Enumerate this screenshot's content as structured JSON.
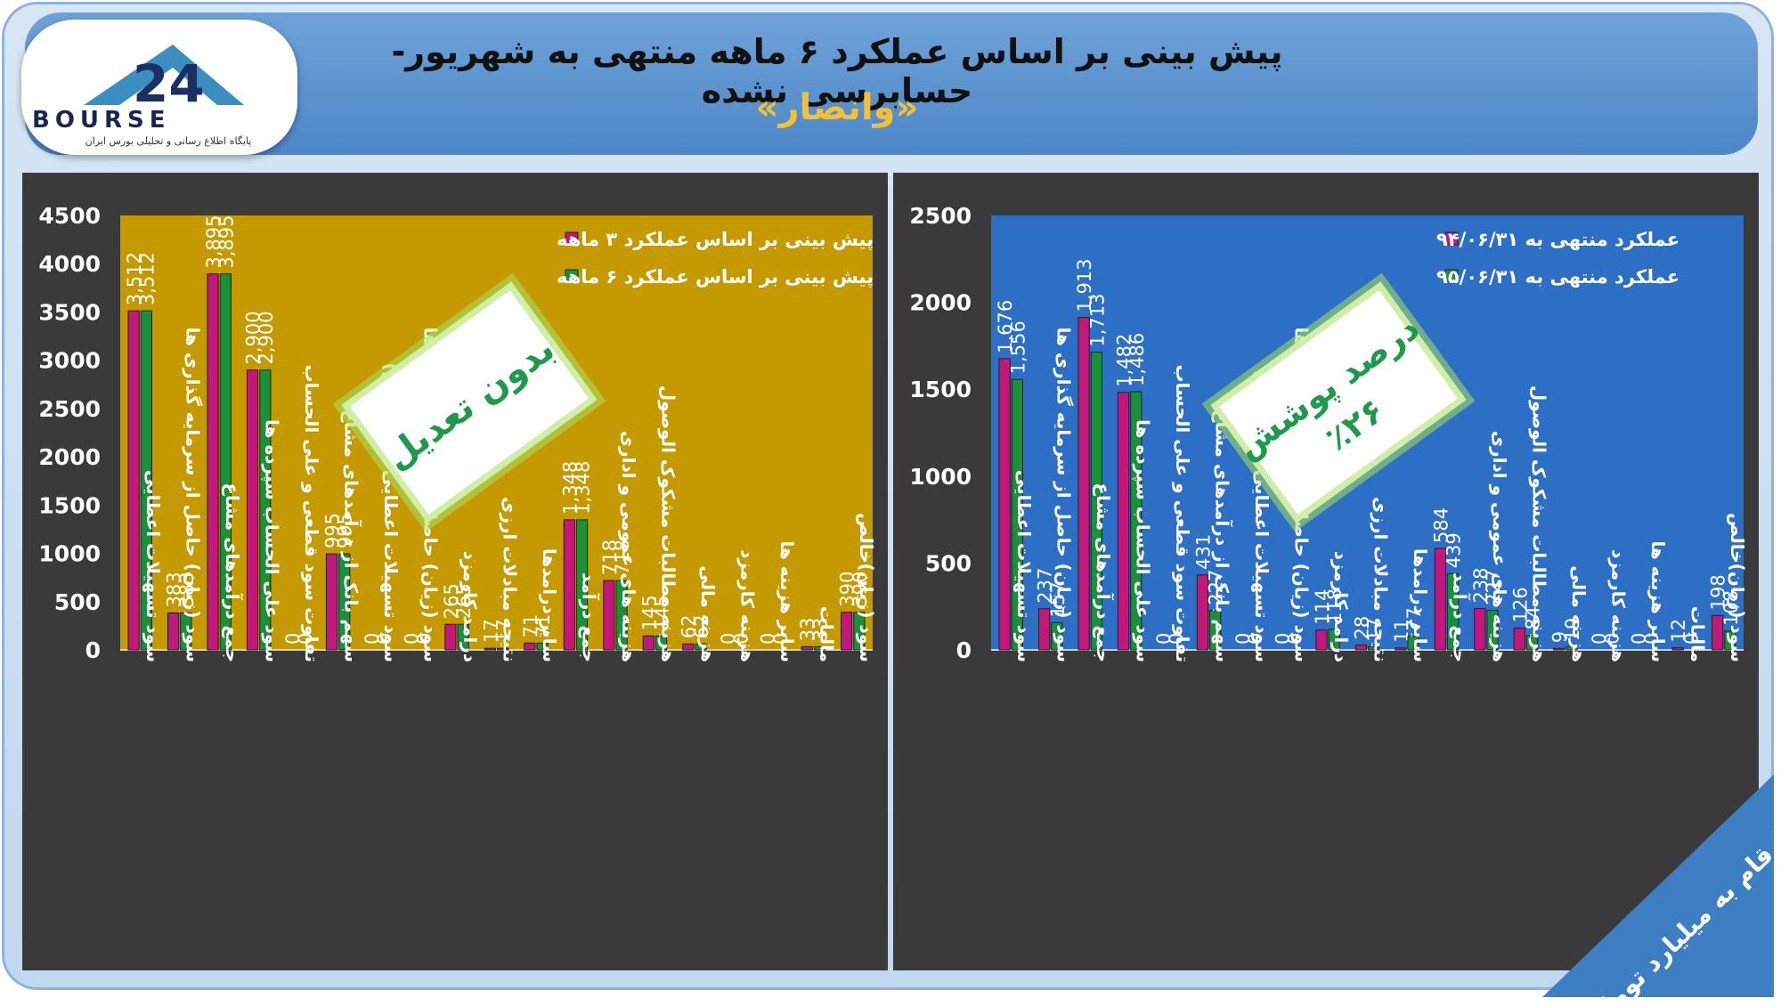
{
  "header": {
    "title": "پیش بینی بر اساس عملکرد ۶ ماهه منتهی به شهریور-حسابرسی نشده",
    "subtitle": "«وانصار»"
  },
  "logo": {
    "word": "BOURSE",
    "tagline": "پایگاه اطلاع رسانی و تحلیلی بورس ایران",
    "mark": "24"
  },
  "corner_note": "ارقام به میلیارد تومان",
  "charts": {
    "left": {
      "badge": "بدون تعدیل",
      "colors": {
        "series1": "#c2187c",
        "series2": "#1b8f3a",
        "plot_bg": "#c49a00",
        "panel_bg": "#3a3a3a"
      }
    },
    "right": {
      "badge_line1": "درصد پوشش",
      "badge_line2": "٪۲۶",
      "colors": {
        "series1": "#c2187c",
        "series2": "#1b8f3a",
        "plot_bg": "#2d6fc4",
        "panel_bg": "#3a3a3a"
      }
    }
  },
  "chart_data": [
    {
      "type": "bar",
      "categories": [
        "سود تسهیلات اعطایی",
        "سود (زیان) حاصل از سرمایه گذاری ها",
        "جمع درآمدهای مشاع",
        "سود علی الحساب سپرده ها",
        "تفاوت سود قطعی و علی الحساب",
        "سهم بانک از درآمدهای مشاع",
        "سود تسهیلات اعطایی (غیر مشاع)",
        "سود (زیان) حاصل از سرمایه گذاری ها",
        "درامد کارمزد",
        "نتیجه مبادلات ارزی",
        "سایر درامدها",
        "جمع درآمد",
        "هزینه های عمومی و اداری",
        "هزینه مطالبات مشکوک الوصول",
        "هزینه مالی",
        "هزینه کارمزد",
        "سایر هزینه ها",
        "مالیات",
        "سود (زیان)خالص"
      ],
      "series": [
        {
          "name": "پیش بینی بر اساس عملکرد ۳ ماهه",
          "values": [
            3512,
            383,
            3895,
            2900,
            0,
            995,
            0,
            0,
            265,
            17,
            71,
            1348,
            718,
            145,
            62,
            0,
            0,
            33,
            390
          ]
        },
        {
          "name": "پیش بینی بر اساس عملکرد ۶ ماهه",
          "values": [
            3512,
            383,
            3895,
            2900,
            0,
            995,
            0,
            0,
            265,
            17,
            71,
            1348,
            718,
            145,
            62,
            0,
            0,
            33,
            390
          ]
        }
      ],
      "value_labels": [
        [
          "3,512",
          "383",
          "3,895",
          "2,900",
          "0",
          "995",
          "0",
          "0",
          "265",
          "17",
          "71",
          "1,348",
          "718",
          "145",
          "62",
          "0",
          "0",
          "33",
          "390"
        ],
        [
          "3,512",
          "383",
          "3,895",
          "2,900",
          "0",
          "995",
          "0",
          "0",
          "265",
          "17",
          "71",
          "1,348",
          "718",
          "145",
          "62",
          "0",
          "0",
          "33",
          "390"
        ]
      ],
      "yticks": [
        "0",
        "500",
        "1000",
        "1500",
        "2000",
        "2500",
        "3000",
        "3500",
        "4000",
        "4500"
      ],
      "ylim": [
        0,
        4500
      ],
      "legend": "top-right",
      "grid": false
    },
    {
      "type": "bar",
      "categories": [
        "سود تسهیلات اعطایی",
        "سود (زیان) حاصل از سرمایه گذاری ها",
        "جمع درآمدهای مشاع",
        "سود علی الحساب سپرده ها",
        "تفاوت سود قطعی و علی الحساب",
        "سهم بانک از درآمدهای مشاع",
        "سود تسهیلات اعطایی (غیرمشاع)",
        "سود (زیان) حاصل از سرمایه گذاری ها",
        "درامد کارمزد",
        "نتیجه مبادلات ارزی",
        "سایر درامدها",
        "جمع درآمد",
        "هزینه های عمومی و اداری",
        "هزینه مطالبات مشکوک الوصول",
        "هزینه مالی",
        "هزینه کارمزد",
        "سایر هزینه ها",
        "مالیات",
        "سود (زیان)خالص"
      ],
      "series": [
        {
          "name": "عملکرد منتهی به ۹۴/۰۶/۳۱",
          "values": [
            1676,
            237,
            1913,
            1482,
            0,
            431,
            0,
            0,
            114,
            28,
            11,
            584,
            238,
            126,
            9,
            0,
            0,
            12,
            198
          ]
        },
        {
          "name": "عملکرد منتهی به ۹۵/۰۶/۳۱",
          "values": [
            1556,
            157,
            1713,
            1486,
            0,
            227,
            0,
            0,
            118,
            17,
            77,
            439,
            227,
            84,
            19,
            0,
            0,
            0,
            108
          ]
        }
      ],
      "value_labels": [
        [
          "1,676",
          "237",
          "1,913",
          "1,482",
          "0",
          "431",
          "0",
          "0",
          "114",
          "28",
          "11",
          "584",
          "238",
          "126",
          "9",
          "0",
          "0",
          "12",
          "198"
        ],
        [
          "1,556",
          "157",
          "1,713",
          "1,486",
          "0",
          "227",
          "0",
          "0",
          "118",
          "17",
          "77",
          "439",
          "227",
          "84",
          "19",
          "0",
          "0",
          "0",
          "108"
        ]
      ],
      "yticks": [
        "0",
        "500",
        "1000",
        "1500",
        "2000",
        "2500"
      ],
      "ylim": [
        0,
        2500
      ],
      "legend": "top-right",
      "grid": false
    }
  ]
}
